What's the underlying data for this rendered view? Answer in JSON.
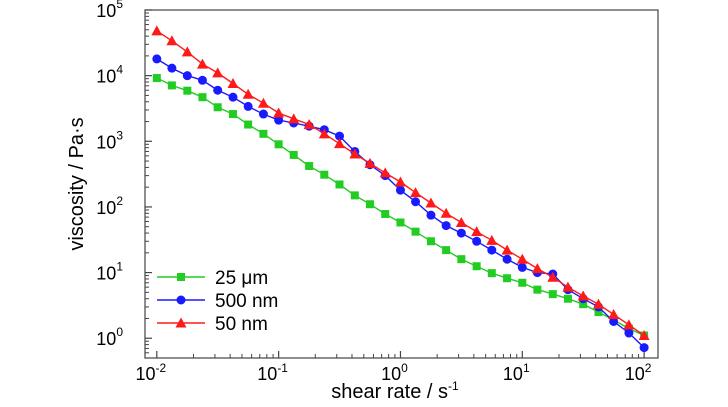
{
  "chart_data": {
    "type": "line",
    "xlabel": "shear rate / s",
    "xlabel_exp": "-1",
    "ylabel": "viscosity / Pa·s",
    "x_scale": "log",
    "y_scale": "log",
    "xlim": [
      0.008,
      130
    ],
    "ylim": [
      0.5,
      100000
    ],
    "grid": false,
    "legend_position": "bottom-left",
    "x_ticks": [
      {
        "base": "10",
        "exp": "-2",
        "value": 0.01
      },
      {
        "base": "10",
        "exp": "-1",
        "value": 0.1
      },
      {
        "base": "10",
        "exp": "0",
        "value": 1
      },
      {
        "base": "10",
        "exp": "1",
        "value": 10
      },
      {
        "base": "10",
        "exp": "2",
        "value": 100
      }
    ],
    "y_ticks": [
      {
        "base": "10",
        "exp": "0",
        "value": 1
      },
      {
        "base": "10",
        "exp": "1",
        "value": 10
      },
      {
        "base": "10",
        "exp": "2",
        "value": 100
      },
      {
        "base": "10",
        "exp": "3",
        "value": 1000
      },
      {
        "base": "10",
        "exp": "4",
        "value": 10000
      },
      {
        "base": "10",
        "exp": "5",
        "value": 100000
      }
    ],
    "series": [
      {
        "name": "25 μm",
        "color": "#22cc22",
        "marker": "square",
        "points": [
          [
            0.01,
            9200
          ],
          [
            0.0133,
            7100
          ],
          [
            0.0178,
            5900
          ],
          [
            0.0237,
            4700
          ],
          [
            0.0316,
            3300
          ],
          [
            0.0422,
            2600
          ],
          [
            0.0562,
            1800
          ],
          [
            0.075,
            1300
          ],
          [
            0.1,
            900
          ],
          [
            0.133,
            620
          ],
          [
            0.178,
            420
          ],
          [
            0.237,
            310
          ],
          [
            0.316,
            220
          ],
          [
            0.422,
            150
          ],
          [
            0.562,
            110
          ],
          [
            0.75,
            78
          ],
          [
            1.0,
            58
          ],
          [
            1.33,
            42
          ],
          [
            1.78,
            30
          ],
          [
            2.37,
            22
          ],
          [
            3.16,
            16
          ],
          [
            4.22,
            12.5
          ],
          [
            5.62,
            9.8
          ],
          [
            7.5,
            8.2
          ],
          [
            10.0,
            7.0
          ],
          [
            13.3,
            5.5
          ],
          [
            17.8,
            4.7
          ],
          [
            23.7,
            4.0
          ],
          [
            31.6,
            3.3
          ],
          [
            42.2,
            2.5
          ],
          [
            56.2,
            1.9
          ],
          [
            75.0,
            1.4
          ],
          [
            100,
            1.1
          ]
        ]
      },
      {
        "name": "500 nm",
        "color": "#1a1aff",
        "marker": "circle",
        "points": [
          [
            0.01,
            18000
          ],
          [
            0.0133,
            13000
          ],
          [
            0.0178,
            10000
          ],
          [
            0.0237,
            8500
          ],
          [
            0.0316,
            6000
          ],
          [
            0.0422,
            4700
          ],
          [
            0.0562,
            3400
          ],
          [
            0.075,
            2600
          ],
          [
            0.1,
            2100
          ],
          [
            0.133,
            1900
          ],
          [
            0.178,
            1700
          ],
          [
            0.237,
            1500
          ],
          [
            0.316,
            1200
          ],
          [
            0.422,
            700
          ],
          [
            0.562,
            440
          ],
          [
            0.75,
            300
          ],
          [
            1.0,
            180
          ],
          [
            1.33,
            120
          ],
          [
            1.78,
            75
          ],
          [
            2.37,
            52
          ],
          [
            3.16,
            40
          ],
          [
            4.22,
            30
          ],
          [
            5.62,
            22
          ],
          [
            7.5,
            16
          ],
          [
            10.0,
            12
          ],
          [
            13.3,
            10
          ],
          [
            17.8,
            9.5
          ],
          [
            23.7,
            5.5
          ],
          [
            31.6,
            4.0
          ],
          [
            42.2,
            3.0
          ],
          [
            56.2,
            1.8
          ],
          [
            75.0,
            1.2
          ],
          [
            100,
            0.72
          ]
        ]
      },
      {
        "name": "50 nm",
        "color": "#ff1a1a",
        "marker": "triangle",
        "points": [
          [
            0.01,
            48000
          ],
          [
            0.0133,
            34000
          ],
          [
            0.0178,
            23000
          ],
          [
            0.0237,
            15000
          ],
          [
            0.0316,
            11000
          ],
          [
            0.0422,
            7600
          ],
          [
            0.0562,
            5200
          ],
          [
            0.075,
            3800
          ],
          [
            0.1,
            2700
          ],
          [
            0.133,
            2200
          ],
          [
            0.178,
            1800
          ],
          [
            0.237,
            1300
          ],
          [
            0.316,
            920
          ],
          [
            0.422,
            640
          ],
          [
            0.562,
            460
          ],
          [
            0.75,
            330
          ],
          [
            1.0,
            240
          ],
          [
            1.33,
            165
          ],
          [
            1.78,
            115
          ],
          [
            2.37,
            80
          ],
          [
            3.16,
            58
          ],
          [
            4.22,
            42
          ],
          [
            5.62,
            31
          ],
          [
            7.5,
            22
          ],
          [
            10.0,
            16
          ],
          [
            13.3,
            11.5
          ],
          [
            17.8,
            8.5
          ],
          [
            23.7,
            6.0
          ],
          [
            31.6,
            4.4
          ],
          [
            42.2,
            3.3
          ],
          [
            56.2,
            2.3
          ],
          [
            75.0,
            1.6
          ],
          [
            100,
            1.1
          ]
        ]
      }
    ]
  }
}
